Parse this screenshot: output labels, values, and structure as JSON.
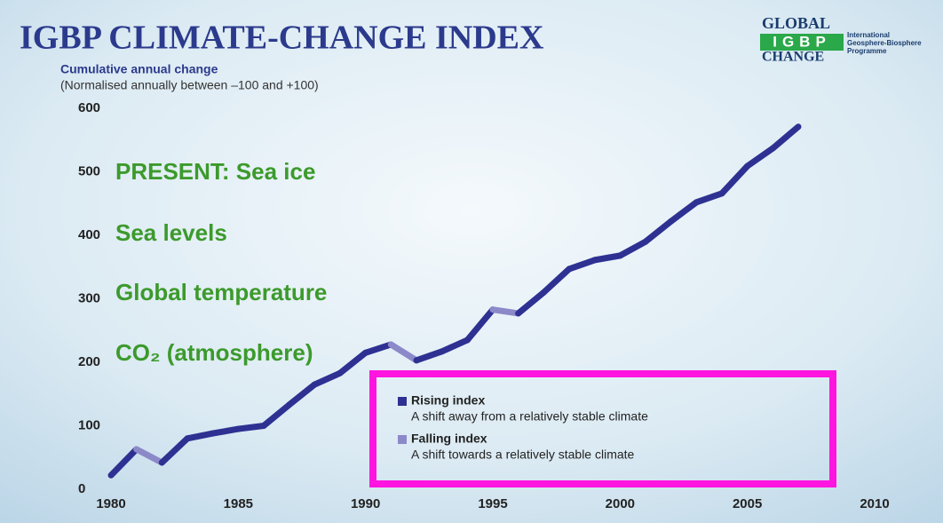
{
  "chart_data": {
    "type": "line",
    "title": "IGBP CLIMATE-CHANGE INDEX",
    "subtitle": "Cumulative annual change",
    "note": "(Normalised annually between –100 and +100)",
    "logo": {
      "top": "GLOBAL",
      "middle": "IGBP",
      "bottom": "CHANGE",
      "side": [
        "International",
        "Geosphere-Biosphere",
        "Programme"
      ]
    },
    "annotations": [
      "PRESENT: Sea ice",
      "Sea levels",
      "Global temperature",
      "CO₂ (atmosphere)"
    ],
    "x": [
      1980,
      1981,
      1982,
      1983,
      1984,
      1985,
      1986,
      1987,
      1988,
      1989,
      1990,
      1991,
      1992,
      1993,
      1994,
      1995,
      1996,
      1997,
      1998,
      1999,
      2000,
      2001,
      2002,
      2003,
      2004,
      2005,
      2006,
      2007
    ],
    "values": [
      22,
      63,
      42,
      80,
      88,
      95,
      100,
      133,
      165,
      183,
      215,
      228,
      203,
      217,
      235,
      283,
      277,
      310,
      347,
      361,
      368,
      390,
      422,
      452,
      466,
      509,
      537,
      571
    ],
    "series": [
      {
        "name": "Rising index",
        "description": "A shift away from a relatively stable climate",
        "color": "#2e3192"
      },
      {
        "name": "Falling index",
        "description": "A shift towards a relatively stable climate",
        "color": "#8c89c9"
      }
    ],
    "xlim": [
      1980,
      2010
    ],
    "xticks": [
      1980,
      1985,
      1990,
      1995,
      2000,
      2005,
      2010
    ],
    "ylim": [
      0,
      600
    ],
    "yticks": [
      0,
      100,
      200,
      300,
      400,
      500,
      600
    ]
  }
}
